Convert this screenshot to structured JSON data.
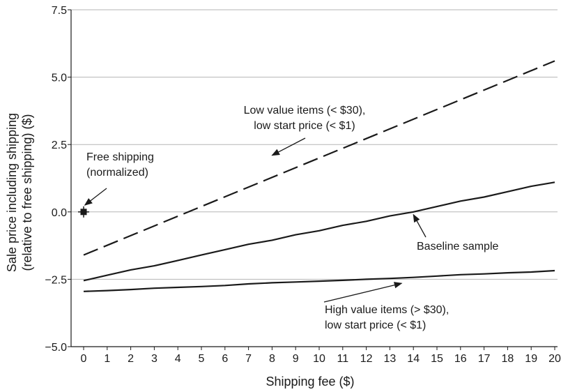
{
  "chart_data": {
    "type": "line",
    "xlabel": "Shipping fee ($)",
    "ylabel_line1": "Sale price including shipping",
    "ylabel_line2": "(relative to free shipping) ($)",
    "xlim": [
      0,
      20
    ],
    "ylim": [
      -5.0,
      7.5
    ],
    "x_ticks": [
      0,
      1,
      2,
      3,
      4,
      5,
      6,
      7,
      8,
      9,
      10,
      11,
      12,
      13,
      14,
      15,
      16,
      17,
      18,
      19,
      20
    ],
    "y_ticks": [
      -5.0,
      -2.5,
      0.0,
      2.5,
      5.0,
      7.5
    ],
    "y_tick_labels": [
      "−5.0",
      "−2.5",
      "0.0",
      "2.5",
      "5.0",
      "7.5"
    ],
    "grid": "horizontal",
    "series": [
      {
        "key": "low_value",
        "style": "dashed",
        "color": "#1a1a1a",
        "x": [
          0,
          20
        ],
        "y": [
          -1.6,
          5.6
        ]
      },
      {
        "key": "baseline",
        "style": "solid",
        "color": "#1a1a1a",
        "x": [
          0,
          1,
          2,
          3,
          4,
          5,
          6,
          7,
          8,
          9,
          10,
          11,
          12,
          13,
          14,
          15,
          16,
          17,
          18,
          19,
          20
        ],
        "y": [
          -2.55,
          -2.35,
          -2.15,
          -2.0,
          -1.8,
          -1.6,
          -1.4,
          -1.2,
          -1.05,
          -0.85,
          -0.7,
          -0.5,
          -0.35,
          -0.15,
          0.0,
          0.2,
          0.4,
          0.55,
          0.75,
          0.95,
          1.1
        ]
      },
      {
        "key": "high_value",
        "style": "solid",
        "color": "#1a1a1a",
        "x": [
          0,
          1,
          2,
          3,
          4,
          5,
          6,
          7,
          8,
          9,
          10,
          11,
          12,
          13,
          14,
          15,
          16,
          17,
          18,
          19,
          20
        ],
        "y": [
          -2.95,
          -2.92,
          -2.88,
          -2.83,
          -2.8,
          -2.77,
          -2.73,
          -2.67,
          -2.63,
          -2.6,
          -2.57,
          -2.54,
          -2.5,
          -2.47,
          -2.43,
          -2.38,
          -2.33,
          -2.3,
          -2.26,
          -2.23,
          -2.18
        ]
      }
    ],
    "point": {
      "x": 0,
      "y": 0.0,
      "marker": "plus-square"
    },
    "annotations": [
      {
        "key": "free",
        "lines": [
          "Free shipping",
          "(normalized)"
        ],
        "arrow_to": [
          0.05,
          0.25
        ]
      },
      {
        "key": "low",
        "lines": [
          "Low value items (< $30),",
          "low start price (< $1)"
        ],
        "arrow_to": [
          8.0,
          2.1
        ]
      },
      {
        "key": "base",
        "lines": [
          "Baseline sample"
        ],
        "arrow_to": [
          14.0,
          -0.1
        ]
      },
      {
        "key": "high",
        "lines": [
          "High value items (> $30),",
          "low start price (< $1)"
        ],
        "arrow_to": [
          13.5,
          -2.65
        ]
      }
    ]
  }
}
